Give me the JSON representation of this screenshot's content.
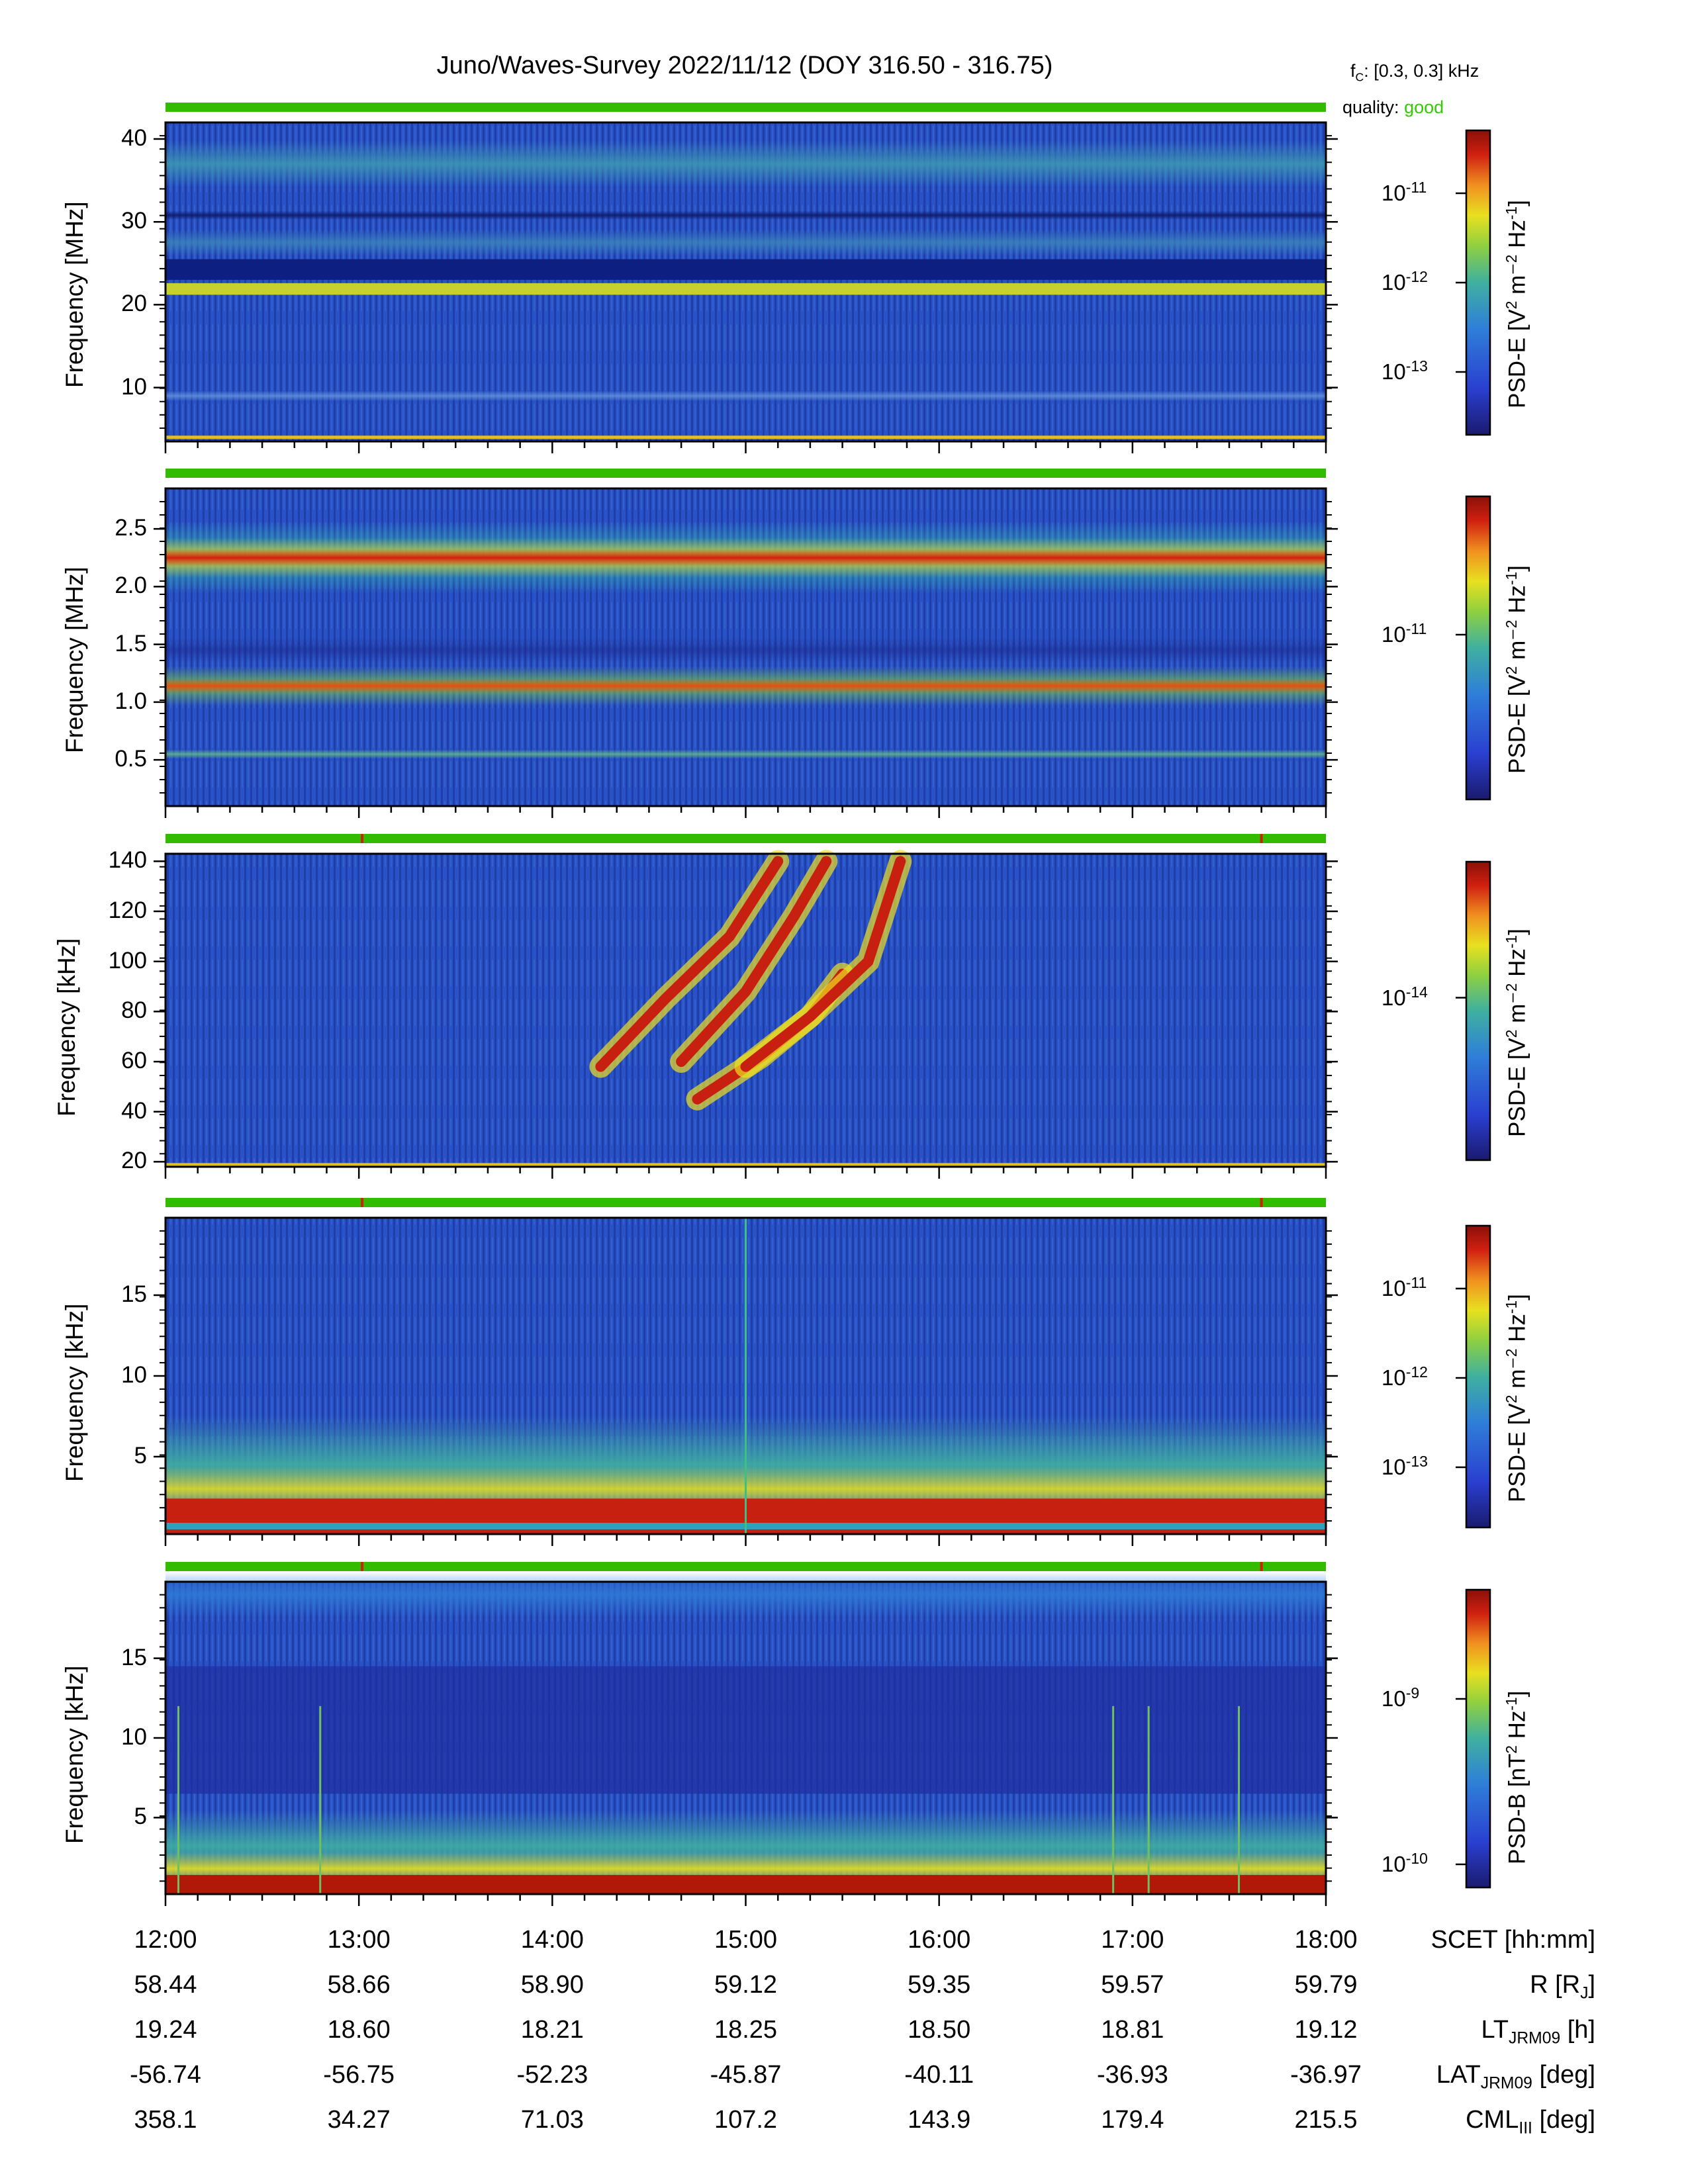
{
  "title": "Juno/Waves-Survey  2022/11/12 (DOY 316.50 - 316.75)",
  "fc_label": "[0.3, 0.3] kHz",
  "quality_label": "quality:",
  "quality_value": "good",
  "chart_data": [
    {
      "type": "heatmap",
      "ylabel": "Frequency [MHz]",
      "yticks": [
        "10",
        "20",
        "30",
        "40"
      ],
      "ylim": [
        3.5,
        42
      ],
      "colorbar_label": "PSD-E [V² m⁻² Hz⁻¹]",
      "colorbar_ticks": [
        "10-11",
        "10-12",
        "10-13"
      ],
      "features": [
        {
          "desc": "bright band",
          "freq": 21.8,
          "level": "high"
        },
        {
          "desc": "dark band",
          "freq": 24.5,
          "level": "low"
        },
        {
          "desc": "thin line",
          "freq": 3.8,
          "level": "high"
        }
      ]
    },
    {
      "type": "heatmap",
      "ylabel": "Frequency [MHz]",
      "yticks": [
        "0.5",
        "1.0",
        "1.5",
        "2.0",
        "2.5"
      ],
      "ylim": [
        0.1,
        2.85
      ],
      "colorbar_label": "PSD-E [V² m⁻² Hz⁻¹]",
      "colorbar_ticks": [
        "10-11"
      ],
      "features": [
        {
          "desc": "intense band",
          "freq": 2.25,
          "level": "max"
        },
        {
          "desc": "intense band",
          "freq": 1.14,
          "level": "max"
        },
        {
          "desc": "weak band",
          "freq": 0.55,
          "level": "mid"
        }
      ]
    },
    {
      "type": "heatmap",
      "ylabel": "Frequency [kHz]",
      "yticks": [
        "20",
        "40",
        "60",
        "80",
        "100",
        "120",
        "140"
      ],
      "ylim": [
        18,
        143
      ],
      "colorbar_label": "PSD-E [V² m⁻² Hz⁻¹]",
      "colorbar_ticks": [
        "10-14"
      ],
      "features": [
        {
          "desc": "drifting emission arcs",
          "time_range": [
            "14:15",
            "15:30"
          ],
          "freq_range": [
            45,
            140
          ]
        }
      ]
    },
    {
      "type": "heatmap",
      "ylabel": "Frequency [kHz]",
      "yticks": [
        "5",
        "10",
        "15"
      ],
      "ylim": [
        0.2,
        19.8
      ],
      "colorbar_label": "PSD-E [V² m⁻² Hz⁻¹]",
      "colorbar_ticks": [
        "10-11",
        "10-12",
        "10-13"
      ],
      "features": [
        {
          "desc": "intense low-frequency band",
          "freq_range": [
            0.5,
            2.5
          ]
        },
        {
          "desc": "vertical line",
          "time": "15:00"
        }
      ]
    },
    {
      "type": "heatmap",
      "ylabel": "Frequency [kHz]",
      "yticks": [
        "5",
        "10",
        "15"
      ],
      "ylim": [
        0.2,
        19.8
      ],
      "colorbar_label": "PSD-B [nT² Hz⁻¹]",
      "colorbar_ticks": [
        "10-9",
        "10-10"
      ],
      "features": [
        {
          "desc": "intense low-frequency band",
          "freq_range": [
            0.2,
            2.0
          ]
        },
        {
          "desc": "vertical lines",
          "times": [
            "12:04",
            "12:48",
            "16:54",
            "17:05",
            "17:33"
          ]
        }
      ]
    }
  ],
  "ephemeris": {
    "rows": [
      {
        "label": "SCET [hh:mm]",
        "values": [
          "12:00",
          "13:00",
          "14:00",
          "15:00",
          "16:00",
          "17:00",
          "18:00"
        ]
      },
      {
        "label": "R [R_J]",
        "values": [
          "58.44",
          "58.66",
          "58.90",
          "59.12",
          "59.35",
          "59.57",
          "59.79"
        ]
      },
      {
        "label": "LT_JRM09 [h]",
        "values": [
          "19.24",
          "18.60",
          "18.21",
          "18.25",
          "18.50",
          "18.81",
          "19.12"
        ]
      },
      {
        "label": "LAT_JRM09 [deg]",
        "values": [
          "-56.74",
          "-56.75",
          "-52.23",
          "-45.87",
          "-40.11",
          "-36.93",
          "-36.97"
        ]
      },
      {
        "label": "CML_III [deg]",
        "values": [
          "358.1",
          "34.27",
          "71.03",
          "107.2",
          "143.9",
          "179.4",
          "215.5"
        ]
      }
    ]
  },
  "quality_bar": {
    "good_color": "#33bb00",
    "flag_color": "#cc2200"
  }
}
